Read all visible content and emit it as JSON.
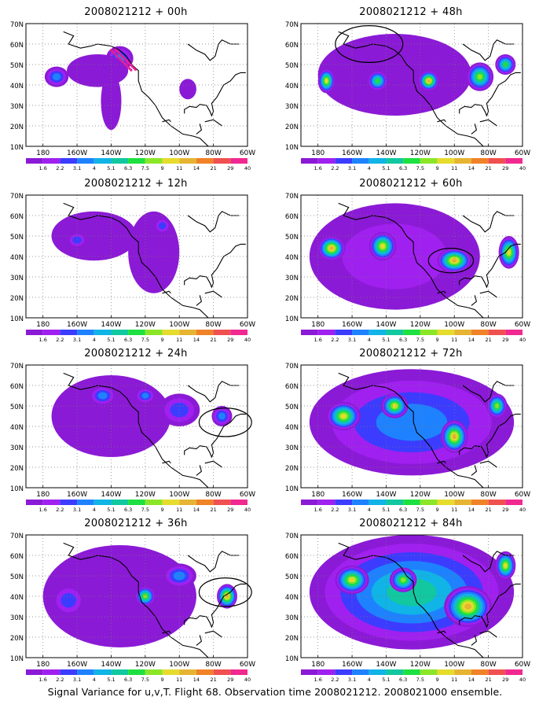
{
  "footer": "Signal Variance for u,v,T. Flight 68. Observation time 2008021212. 2008021000 ensemble.",
  "lat_labels": [
    "70N",
    "60N",
    "50N",
    "40N",
    "30N",
    "20N",
    "10N"
  ],
  "lon_labels": [
    "180",
    "160W",
    "140W",
    "120W",
    "100W",
    "80W",
    "60W"
  ],
  "colorbar": {
    "labels": [
      "1.6",
      "2.2",
      "3.1",
      "4",
      "5.1",
      "6.3",
      "7.5",
      "9",
      "11",
      "14",
      "21",
      "29",
      "40"
    ],
    "colors": [
      "#8b1ad6",
      "#a020f0",
      "#3c3cff",
      "#1e82ff",
      "#10b4e6",
      "#12c8a0",
      "#1ee040",
      "#8ce628",
      "#e6dc2d",
      "#e6b432",
      "#f08228",
      "#f05050",
      "#f02890"
    ]
  },
  "panels": [
    {
      "title": "2008021212 + 00h",
      "blobs": [
        {
          "x": -172,
          "y": 44,
          "rx": 7,
          "ry": 5,
          "lvl": 3
        },
        {
          "x": -135,
          "y": 53,
          "rx": 8,
          "ry": 6,
          "lvl": 3
        },
        {
          "x": -148,
          "y": 47,
          "rx": 18,
          "ry": 8,
          "lvl": 0
        },
        {
          "x": -140,
          "y": 32,
          "rx": 6,
          "ry": 14,
          "lvl": 0
        },
        {
          "x": -95,
          "y": 38,
          "rx": 5,
          "ry": 5,
          "lvl": 0
        }
      ],
      "circle": null,
      "obs": true
    },
    {
      "title": "2008021212 + 12h",
      "blobs": [
        {
          "x": -150,
          "y": 50,
          "rx": 25,
          "ry": 12,
          "lvl": 0
        },
        {
          "x": -115,
          "y": 42,
          "rx": 15,
          "ry": 20,
          "lvl": 0
        },
        {
          "x": -160,
          "y": 48,
          "rx": 6,
          "ry": 4,
          "lvl": 2
        },
        {
          "x": -110,
          "y": 55,
          "rx": 5,
          "ry": 4,
          "lvl": 2
        }
      ],
      "circle": null,
      "obs": false
    },
    {
      "title": "2008021212 + 24h",
      "blobs": [
        {
          "x": -140,
          "y": 45,
          "rx": 35,
          "ry": 20,
          "lvl": 0
        },
        {
          "x": -145,
          "y": 55,
          "rx": 8,
          "ry": 5,
          "lvl": 3
        },
        {
          "x": -120,
          "y": 55,
          "rx": 6,
          "ry": 4,
          "lvl": 3
        },
        {
          "x": -100,
          "y": 48,
          "rx": 12,
          "ry": 8,
          "lvl": 2
        },
        {
          "x": -75,
          "y": 45,
          "rx": 6,
          "ry": 5,
          "lvl": 3
        }
      ],
      "circle": {
        "x": -73,
        "y": 42,
        "r": 7
      },
      "obs": false
    },
    {
      "title": "2008021212 + 36h",
      "blobs": [
        {
          "x": -135,
          "y": 40,
          "rx": 45,
          "ry": 25,
          "lvl": 0
        },
        {
          "x": -165,
          "y": 38,
          "rx": 10,
          "ry": 8,
          "lvl": 2
        },
        {
          "x": -120,
          "y": 40,
          "rx": 6,
          "ry": 5,
          "lvl": 7
        },
        {
          "x": -72,
          "y": 40,
          "rx": 6,
          "ry": 6,
          "lvl": 9
        },
        {
          "x": -100,
          "y": 50,
          "rx": 10,
          "ry": 6,
          "lvl": 3
        }
      ],
      "circle": {
        "x": -73,
        "y": 42,
        "r": 7
      },
      "obs": false
    },
    {
      "title": "2008021212 + 48h",
      "blobs": [
        {
          "x": -135,
          "y": 45,
          "rx": 45,
          "ry": 20,
          "lvl": 0
        },
        {
          "x": -175,
          "y": 42,
          "rx": 5,
          "ry": 6,
          "lvl": 8
        },
        {
          "x": -145,
          "y": 42,
          "rx": 6,
          "ry": 5,
          "lvl": 6
        },
        {
          "x": -115,
          "y": 42,
          "rx": 6,
          "ry": 5,
          "lvl": 9
        },
        {
          "x": -85,
          "y": 44,
          "rx": 8,
          "ry": 7,
          "lvl": 7
        },
        {
          "x": -70,
          "y": 50,
          "rx": 6,
          "ry": 5,
          "lvl": 6
        }
      ],
      "circle": {
        "x": -150,
        "y": 60,
        "r": 9
      },
      "obs": false
    },
    {
      "title": "2008021212 + 60h",
      "blobs": [
        {
          "x": -135,
          "y": 40,
          "rx": 50,
          "ry": 26,
          "lvl": 1
        },
        {
          "x": -172,
          "y": 44,
          "rx": 8,
          "ry": 6,
          "lvl": 9
        },
        {
          "x": -142,
          "y": 45,
          "rx": 8,
          "ry": 7,
          "lvl": 8
        },
        {
          "x": -100,
          "y": 38,
          "rx": 10,
          "ry": 6,
          "lvl": 9
        },
        {
          "x": -68,
          "y": 42,
          "rx": 6,
          "ry": 8,
          "lvl": 8
        }
      ],
      "circle": {
        "x": -102,
        "y": 38,
        "r": 6
      },
      "obs": false
    },
    {
      "title": "2008021212 + 72h",
      "blobs": [
        {
          "x": -125,
          "y": 42,
          "rx": 60,
          "ry": 26,
          "lvl": 3
        },
        {
          "x": -165,
          "y": 45,
          "rx": 10,
          "ry": 7,
          "lvl": 8
        },
        {
          "x": -135,
          "y": 50,
          "rx": 8,
          "ry": 6,
          "lvl": 8
        },
        {
          "x": -100,
          "y": 35,
          "rx": 8,
          "ry": 8,
          "lvl": 9
        },
        {
          "x": -75,
          "y": 50,
          "rx": 6,
          "ry": 6,
          "lvl": 7
        }
      ],
      "circle": null,
      "obs": false
    },
    {
      "title": "2008021212 + 84h",
      "blobs": [
        {
          "x": -125,
          "y": 42,
          "rx": 60,
          "ry": 28,
          "lvl": 5
        },
        {
          "x": -160,
          "y": 48,
          "rx": 10,
          "ry": 7,
          "lvl": 8
        },
        {
          "x": -130,
          "y": 48,
          "rx": 8,
          "ry": 6,
          "lvl": 7
        },
        {
          "x": -92,
          "y": 35,
          "rx": 14,
          "ry": 10,
          "lvl": 9
        },
        {
          "x": -70,
          "y": 55,
          "rx": 6,
          "ry": 7,
          "lvl": 8
        }
      ],
      "circle": null,
      "obs": false
    }
  ]
}
